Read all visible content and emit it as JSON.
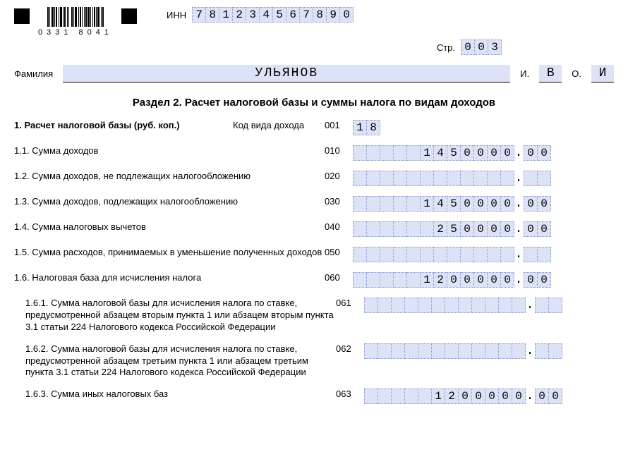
{
  "barcode_caption": "0331   8041",
  "labels": {
    "inn": "ИНН",
    "str": "Стр.",
    "surname": "Фамилия",
    "i": "И.",
    "o": "О.",
    "section_title": "Раздел 2. Расчет налоговой базы и суммы налога по видам доходов",
    "r1": "1. Расчет налоговой базы (руб. коп.)",
    "income_code": "Код вида дохода",
    "r11": "1.1. Сумма доходов",
    "r12": "1.2. Сумма доходов, не подлежащих налогообложению",
    "r13": "1.3. Сумма доходов, подлежащих налогообложению",
    "r14": "1.4. Сумма налоговых вычетов",
    "r15": "1.5. Сумма расходов, принимаемых в уменьшение полученных доходов",
    "r16": "1.6. Налоговая база для исчисления налога",
    "r161": "1.6.1. Сумма налоговой базы для исчисления налога по ставке, предусмотренной абзацем вторым пункта 1 или абзацем вторым пункта 3.1 статьи 224 Налогового кодекса Российской Федерации",
    "r162": "1.6.2. Сумма налоговой базы для исчисления налога по ставке, предусмотренной абзацем третьим пункта 1 или абзацем третьим пункта 3.1 статьи 224 Налогового кодекса Российской Федерации",
    "r163": "1.6.3. Сумма иных налоговых баз"
  },
  "codes": {
    "c001": "001",
    "c010": "010",
    "c020": "020",
    "c030": "030",
    "c040": "040",
    "c050": "050",
    "c060": "060",
    "c061": "061",
    "c062": "062",
    "c063": "063"
  },
  "values": {
    "inn": [
      "7",
      "8",
      "1",
      "2",
      "3",
      "4",
      "5",
      "6",
      "7",
      "8",
      "9",
      "0"
    ],
    "page": [
      "0",
      "0",
      "3"
    ],
    "surname": "УЛЬЯНОВ",
    "initial_i": "В",
    "initial_o": "И",
    "income_type": [
      "1",
      "8"
    ],
    "v010_rub": [
      "",
      "",
      "",
      "",
      "",
      "1",
      "4",
      "5",
      "0",
      "0",
      "0",
      "0"
    ],
    "v010_kop": [
      "0",
      "0"
    ],
    "v020_rub": [
      "",
      "",
      "",
      "",
      "",
      "",
      "",
      "",
      "",
      "",
      "",
      ""
    ],
    "v020_kop": [
      "",
      ""
    ],
    "v030_rub": [
      "",
      "",
      "",
      "",
      "",
      "1",
      "4",
      "5",
      "0",
      "0",
      "0",
      "0"
    ],
    "v030_kop": [
      "0",
      "0"
    ],
    "v040_rub": [
      "",
      "",
      "",
      "",
      "",
      "",
      "2",
      "5",
      "0",
      "0",
      "0",
      "0"
    ],
    "v040_kop": [
      "0",
      "0"
    ],
    "v050_rub": [
      "",
      "",
      "",
      "",
      "",
      "",
      "",
      "",
      "",
      "",
      "",
      ""
    ],
    "v050_kop": [
      "",
      ""
    ],
    "v060_rub": [
      "",
      "",
      "",
      "",
      "",
      "1",
      "2",
      "0",
      "0",
      "0",
      "0",
      "0"
    ],
    "v060_kop": [
      "0",
      "0"
    ],
    "v061_rub": [
      "",
      "",
      "",
      "",
      "",
      "",
      "",
      "",
      "",
      "",
      "",
      ""
    ],
    "v061_kop": [
      "",
      ""
    ],
    "v062_rub": [
      "",
      "",
      "",
      "",
      "",
      "",
      "",
      "",
      "",
      "",
      "",
      ""
    ],
    "v062_kop": [
      "",
      ""
    ],
    "v063_rub": [
      "",
      "",
      "",
      "",
      "",
      "1",
      "2",
      "0",
      "0",
      "0",
      "0",
      "0"
    ],
    "v063_kop": [
      "0",
      "0"
    ]
  },
  "style": {
    "cell_bg": "#dde3f7",
    "cell_border": "#8a95c9",
    "font_mono": "Courier New"
  }
}
